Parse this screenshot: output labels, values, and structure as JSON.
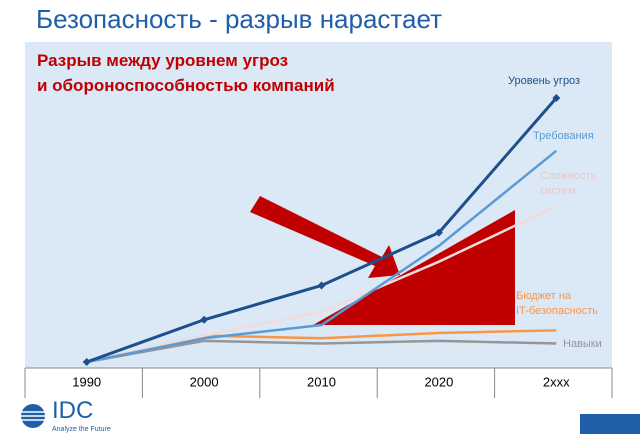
{
  "chart_data": {
    "type": "line",
    "title": "Безопасность - разрыв нарастает",
    "subtitle": "Разрыв между уровнем угроз\nи обороноспособностью компаний",
    "categories": [
      "1990",
      "2000",
      "2010",
      "2020",
      "2xxx"
    ],
    "ylim": [
      0,
      100
    ],
    "series": [
      {
        "name": "Уровень угроз",
        "color": "#1f4e8c",
        "marker": true,
        "values": [
          0,
          16,
          29,
          49,
          100
        ]
      },
      {
        "name": "Требования",
        "color": "#5b9bd5",
        "marker": false,
        "values": [
          0,
          9,
          14,
          44,
          80
        ]
      },
      {
        "name": "Сложность\nсистем",
        "color": "#f2dcdb",
        "marker": false,
        "values": [
          0,
          10,
          19,
          38,
          59
        ]
      },
      {
        "name": "Бюджет на\nIT-безопасность",
        "color": "#f79646",
        "marker": false,
        "values": [
          0,
          10,
          9,
          11,
          12
        ]
      },
      {
        "name": "Навыки",
        "color": "#969696",
        "marker": false,
        "values": [
          0,
          8,
          7,
          8,
          7
        ]
      }
    ]
  },
  "logo": {
    "name": "IDC",
    "tagline": "Analyze the Future"
  }
}
